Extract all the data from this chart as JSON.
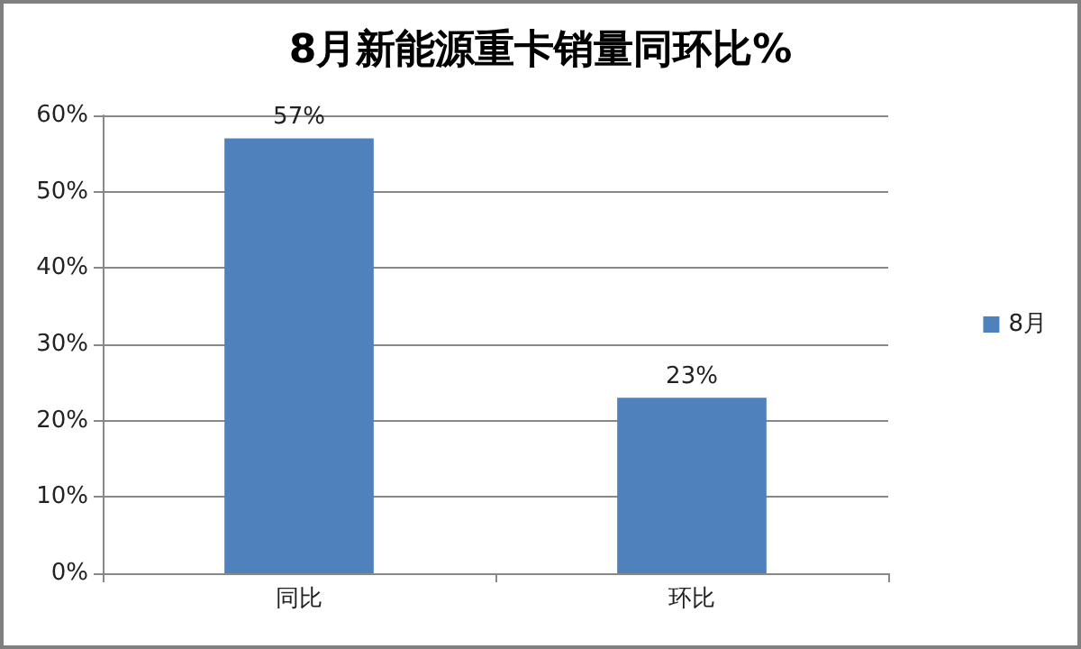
{
  "chart_data": {
    "type": "bar",
    "title": "8月新能源重卡销量同环比%",
    "categories": [
      "同比",
      "环比"
    ],
    "series": [
      {
        "name": "8月",
        "color": "#4f81bd",
        "values": [
          57,
          23
        ],
        "value_labels": [
          "57%",
          "23%"
        ]
      }
    ],
    "ylim": [
      0,
      60
    ],
    "yticks": [
      {
        "value": 0,
        "label": "0%"
      },
      {
        "value": 10,
        "label": "10%"
      },
      {
        "value": 20,
        "label": "20%"
      },
      {
        "value": 30,
        "label": "30%"
      },
      {
        "value": 40,
        "label": "40%"
      },
      {
        "value": 50,
        "label": "50%"
      },
      {
        "value": 60,
        "label": "60%"
      }
    ],
    "grid": "y",
    "legend": "right"
  }
}
